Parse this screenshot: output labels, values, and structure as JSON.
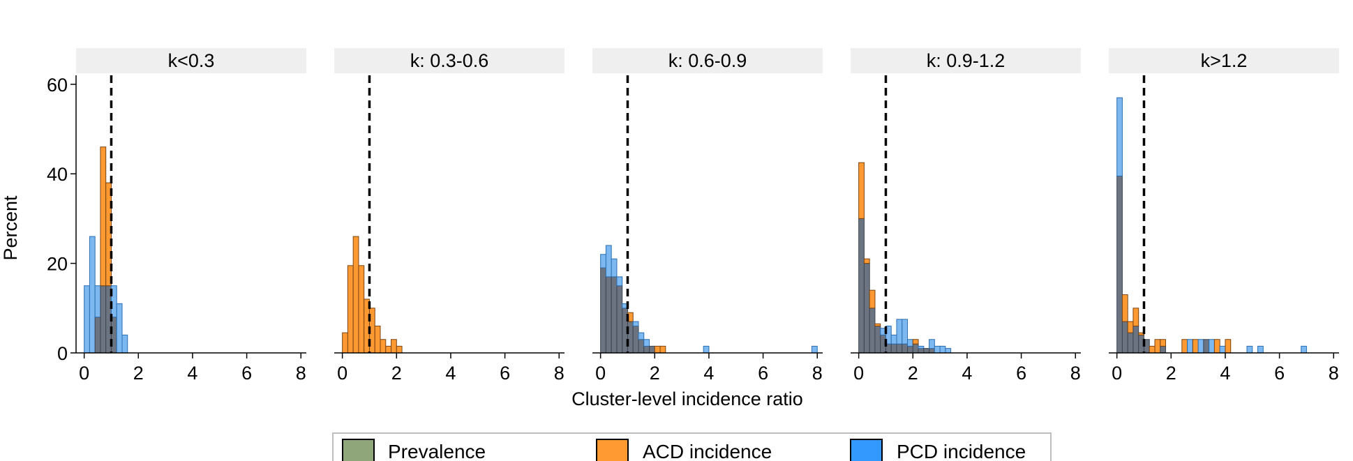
{
  "chart_data": {
    "type": "bar",
    "subtype": "faceted-overlaid-histogram",
    "xlabel": "Cluster-level incidence ratio",
    "ylabel": "Percent",
    "xlim": [
      -0.3,
      8.2
    ],
    "ylim": [
      0,
      62
    ],
    "xticks": [
      0,
      2,
      4,
      6,
      8
    ],
    "yticks": [
      0,
      20,
      40,
      60
    ],
    "bin_width": 0.2,
    "reference_line_x": 1,
    "series": [
      {
        "name": "Prevalence",
        "color": "#8FA67A"
      },
      {
        "name": "ACD incidence",
        "color": "#FF9A33"
      },
      {
        "name": "PCD incidence",
        "color": "#3399FF"
      }
    ],
    "facets": [
      {
        "label": "k<0.3",
        "acd": [
          [
            0.4,
            8
          ],
          [
            0.6,
            46
          ],
          [
            0.8,
            38
          ],
          [
            1.0,
            8
          ]
        ],
        "pcd": [
          [
            0.0,
            15
          ],
          [
            0.2,
            26
          ],
          [
            0.4,
            15
          ],
          [
            0.6,
            15
          ],
          [
            0.8,
            15
          ],
          [
            1.0,
            15
          ],
          [
            1.2,
            11
          ],
          [
            1.4,
            4
          ]
        ]
      },
      {
        "label": "k: 0.3-0.6",
        "acd": [
          [
            0.0,
            4.5
          ],
          [
            0.2,
            19.5
          ],
          [
            0.4,
            26
          ],
          [
            0.6,
            19.5
          ],
          [
            0.8,
            12
          ],
          [
            1.0,
            10
          ],
          [
            1.2,
            6
          ],
          [
            1.4,
            3
          ],
          [
            1.6,
            1.5
          ],
          [
            1.8,
            3
          ],
          [
            2.0,
            1.5
          ]
        ],
        "pcd": []
      },
      {
        "label": "k: 0.6-0.9",
        "acd": [
          [
            0.0,
            19
          ],
          [
            0.2,
            17
          ],
          [
            0.4,
            17
          ],
          [
            0.6,
            15
          ],
          [
            0.8,
            10
          ],
          [
            1.0,
            9
          ],
          [
            1.2,
            6
          ],
          [
            1.4,
            3
          ],
          [
            1.6,
            1.5
          ],
          [
            1.8,
            1.5
          ],
          [
            2.0,
            1.5
          ],
          [
            2.2,
            1.5
          ]
        ],
        "pcd": [
          [
            0.0,
            22
          ],
          [
            0.2,
            24
          ],
          [
            0.4,
            21
          ],
          [
            0.6,
            17
          ],
          [
            0.8,
            11
          ],
          [
            1.0,
            7
          ],
          [
            1.2,
            7
          ],
          [
            1.4,
            4.5
          ],
          [
            1.6,
            3
          ],
          [
            1.8,
            1.5
          ],
          [
            3.8,
            1.5
          ],
          [
            7.8,
            1.5
          ]
        ]
      },
      {
        "label": "k: 0.9-1.2",
        "acd": [
          [
            0.0,
            42.5
          ],
          [
            0.2,
            21
          ],
          [
            0.4,
            14
          ],
          [
            0.6,
            6.5
          ],
          [
            0.8,
            4
          ],
          [
            1.0,
            2
          ],
          [
            1.2,
            2
          ],
          [
            1.4,
            2
          ],
          [
            1.6,
            2
          ],
          [
            1.8,
            1.5
          ],
          [
            2.0,
            3
          ],
          [
            2.2,
            1
          ],
          [
            2.4,
            1
          ],
          [
            2.6,
            1
          ]
        ],
        "pcd": [
          [
            0.0,
            30
          ],
          [
            0.2,
            20
          ],
          [
            0.4,
            10
          ],
          [
            0.6,
            6
          ],
          [
            0.8,
            5.5
          ],
          [
            1.0,
            6
          ],
          [
            1.2,
            4
          ],
          [
            1.4,
            7.5
          ],
          [
            1.6,
            7.5
          ],
          [
            1.8,
            3
          ],
          [
            2.0,
            2
          ],
          [
            2.2,
            1.5
          ],
          [
            2.4,
            1
          ],
          [
            2.6,
            3
          ],
          [
            2.8,
            1.5
          ],
          [
            3.0,
            1.5
          ],
          [
            3.2,
            1
          ]
        ]
      },
      {
        "label": "k>1.2",
        "acd": [
          [
            0.0,
            39.5
          ],
          [
            0.2,
            13
          ],
          [
            0.4,
            7
          ],
          [
            0.6,
            10
          ],
          [
            0.8,
            4.5
          ],
          [
            1.0,
            3
          ],
          [
            1.2,
            1.5
          ],
          [
            1.4,
            3
          ],
          [
            1.6,
            3
          ],
          [
            2.4,
            3
          ],
          [
            2.8,
            3
          ],
          [
            3.2,
            3
          ],
          [
            3.6,
            3
          ],
          [
            4.0,
            3
          ]
        ],
        "pcd": [
          [
            0.0,
            57
          ],
          [
            0.2,
            7
          ],
          [
            0.4,
            4.5
          ],
          [
            0.6,
            6
          ],
          [
            0.8,
            4
          ],
          [
            1.0,
            3
          ],
          [
            1.6,
            1.5
          ],
          [
            2.6,
            3
          ],
          [
            3.0,
            3
          ],
          [
            3.2,
            3
          ],
          [
            3.4,
            3
          ],
          [
            3.8,
            1.5
          ],
          [
            4.8,
            1.5
          ],
          [
            5.2,
            1.5
          ],
          [
            6.8,
            1.5
          ]
        ]
      }
    ]
  }
}
